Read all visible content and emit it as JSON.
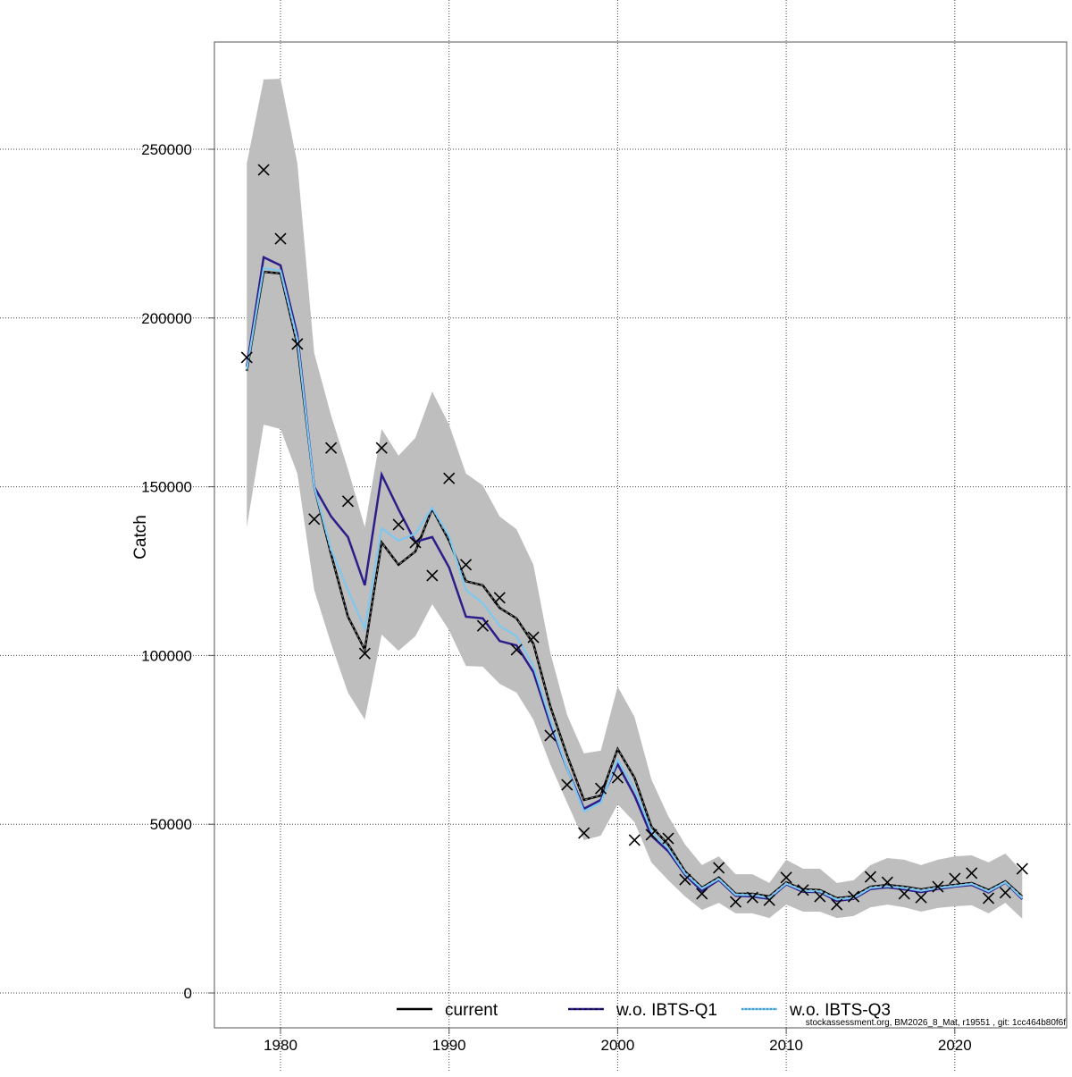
{
  "chart_data": {
    "type": "line",
    "title": "",
    "xlabel": "",
    "ylabel": "Catch",
    "xlim": [
      1976.6,
      2025.3
    ],
    "ylim": [
      -10000,
      282000
    ],
    "x_ticks": [
      1980,
      1990,
      2000,
      2010,
      2020
    ],
    "y_ticks": [
      0,
      50000,
      100000,
      150000,
      200000,
      250000
    ],
    "grid": true,
    "legend_position": "bottom",
    "x": [
      1978,
      1979,
      1980,
      1981,
      1982,
      1983,
      1984,
      1985,
      1986,
      1987,
      1988,
      1989,
      1990,
      1991,
      1992,
      1993,
      1994,
      1995,
      1996,
      1997,
      1998,
      1999,
      2000,
      2001,
      2002,
      2003,
      2004,
      2005,
      2006,
      2007,
      2008,
      2009,
      2010,
      2011,
      2012,
      2013,
      2014,
      2015,
      2016,
      2017,
      2018,
      2019,
      2020,
      2021,
      2022,
      2023,
      2024
    ],
    "confidence_band": {
      "color": "#bebebe",
      "upper": [
        245800,
        270700,
        270900,
        245800,
        189600,
        171100,
        155200,
        138000,
        167100,
        159200,
        164500,
        178200,
        168400,
        153900,
        150400,
        141200,
        137400,
        126900,
        100900,
        82400,
        71000,
        71800,
        90800,
        81800,
        63300,
        52400,
        44000,
        37900,
        40500,
        35200,
        35200,
        32600,
        39500,
        36800,
        36800,
        32600,
        33400,
        37900,
        40000,
        39500,
        37900,
        39500,
        40500,
        40800,
        38700,
        41300,
        36000
      ],
      "lower": [
        138000,
        168400,
        167100,
        153900,
        119400,
        103500,
        89000,
        81000,
        106200,
        101400,
        105700,
        115200,
        107500,
        96900,
        96700,
        91600,
        89000,
        81000,
        67800,
        56400,
        45300,
        46600,
        55900,
        50600,
        38700,
        33400,
        28600,
        24600,
        26700,
        23600,
        23600,
        22200,
        26200,
        24100,
        24100,
        22200,
        22800,
        25400,
        26200,
        25400,
        24100,
        25200,
        25700,
        26000,
        23600,
        26700,
        22000
      ]
    },
    "series": [
      {
        "name": "current",
        "color": "#000000",
        "style": "solid",
        "values": [
          184300,
          213700,
          213200,
          192000,
          150000,
          130000,
          111500,
          101700,
          133500,
          126900,
          130800,
          143500,
          134000,
          122000,
          120800,
          114100,
          111000,
          103500,
          85000,
          70400,
          57200,
          58500,
          72300,
          63800,
          49300,
          44000,
          36000,
          31200,
          34200,
          29400,
          29400,
          28600,
          32800,
          30700,
          30500,
          28100,
          28600,
          31500,
          32000,
          31500,
          30700,
          31500,
          32000,
          32600,
          30500,
          33100,
          28600
        ]
      },
      {
        "name": "w.o. IBTS-Q1",
        "color": "#2b1e8a",
        "style": "dashed",
        "values": [
          185600,
          218000,
          215600,
          195000,
          150000,
          141200,
          135100,
          120800,
          153600,
          143300,
          133700,
          135100,
          126100,
          111500,
          111000,
          104300,
          103000,
          95100,
          79700,
          66500,
          54600,
          57200,
          67800,
          58500,
          46600,
          42000,
          35000,
          30200,
          33500,
          28800,
          28600,
          27900,
          32200,
          30000,
          29900,
          27300,
          27900,
          30800,
          31300,
          30700,
          29900,
          30800,
          31500,
          32000,
          29800,
          32700,
          27800
        ]
      },
      {
        "name": "w.o. IBTS-Q3",
        "color": "#1f78b4",
        "style": "dotted",
        "fill_color": "#7ec8f0",
        "values": [
          184800,
          214800,
          214000,
          193600,
          150000,
          131400,
          119400,
          108000,
          137700,
          134000,
          136100,
          143800,
          135300,
          119400,
          115500,
          108800,
          105700,
          96900,
          81000,
          66500,
          53800,
          56400,
          69100,
          60600,
          47900,
          42800,
          35400,
          30900,
          33800,
          29100,
          29000,
          28200,
          32400,
          30300,
          30100,
          27700,
          28200,
          31100,
          31600,
          31100,
          30300,
          31100,
          31700,
          32300,
          30100,
          32800,
          28100
        ]
      }
    ],
    "observed": {
      "marker": "x",
      "values": [
        188300,
        243900,
        223500,
        192300,
        140400,
        161500,
        145700,
        100600,
        161500,
        138800,
        133500,
        123700,
        152500,
        126900,
        108800,
        117100,
        101700,
        105400,
        76300,
        61700,
        47400,
        60600,
        63800,
        45300,
        46900,
        45800,
        33600,
        29400,
        37100,
        27000,
        28300,
        27500,
        34200,
        30500,
        28600,
        26200,
        28600,
        34400,
        32800,
        29400,
        28300,
        31500,
        33900,
        35500,
        28100,
        29700,
        36800
      ]
    },
    "tick_labels_x": [
      "1980",
      "1990",
      "2000",
      "2010",
      "2020"
    ],
    "tick_labels_y": [
      "0",
      "50000",
      "100000",
      "150000",
      "200000",
      "250000"
    ]
  },
  "legend": {
    "items": [
      "current",
      "w.o. IBTS-Q1",
      "w.o. IBTS-Q3"
    ]
  },
  "footer": "stockassessment.org, BM2026_8_Mat, r19551 , git: 1cc464b80f6f"
}
